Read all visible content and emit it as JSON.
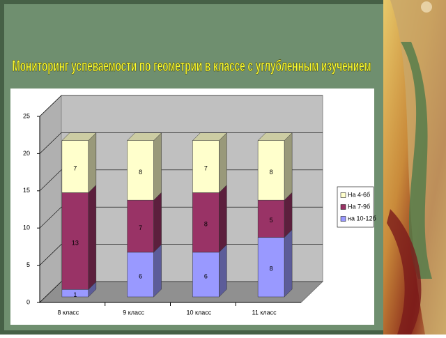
{
  "chart_data": {
    "type": "bar",
    "title": "Мониторинг успеваемости по геометрии в классе с углубленным изучением",
    "categories": [
      "8 класс",
      "9 класс",
      "10 класс",
      "11 класс"
    ],
    "series": [
      {
        "name": "на 10-12б",
        "color": "#9999ff",
        "values": [
          1,
          6,
          6,
          8
        ]
      },
      {
        "name": "На 7-9б",
        "color": "#993366",
        "values": [
          13,
          7,
          8,
          5
        ]
      },
      {
        "name": "На 4-6б",
        "color": "#ffffcc",
        "values": [
          7,
          8,
          7,
          8
        ]
      }
    ],
    "stacked": true,
    "ylim": [
      0,
      25
    ],
    "yticks": [
      0,
      5,
      10,
      15,
      20,
      25
    ],
    "grid": true,
    "legend": "right"
  }
}
